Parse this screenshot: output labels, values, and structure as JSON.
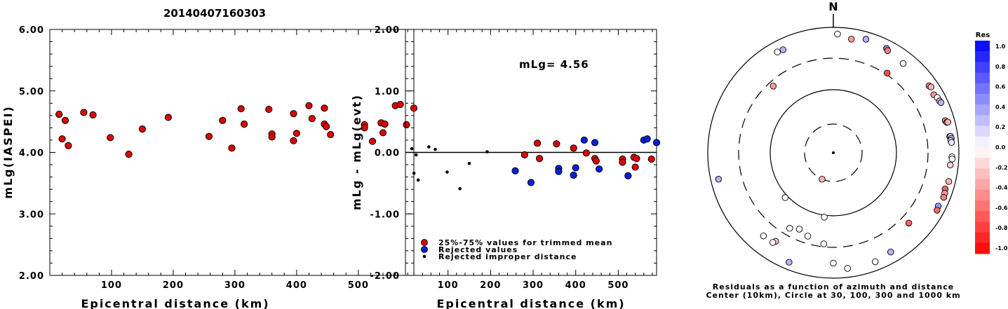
{
  "title": "20140407160303",
  "chart_data": [
    {
      "type": "scatter",
      "xlabel": "Epicentral distance (km)",
      "ylabel": "mLg(IASPEI)",
      "xlim": [
        0,
        590
      ],
      "ylim": [
        2.0,
        6.0
      ],
      "xticks": [
        "100",
        "200",
        "300",
        "400",
        "500"
      ],
      "yticks": [
        "2.00",
        "3.00",
        "4.00",
        "5.00",
        "6.00"
      ],
      "series": [
        {
          "color": "#e00000",
          "points": [
            [
              15,
              4.62
            ],
            [
              20,
              4.22
            ],
            [
              25,
              4.52
            ],
            [
              30,
              4.11
            ],
            [
              55,
              4.65
            ],
            [
              70,
              4.61
            ],
            [
              98,
              4.24
            ],
            [
              128,
              3.97
            ],
            [
              150,
              4.38
            ],
            [
              192,
              4.57
            ],
            [
              258,
              4.26
            ],
            [
              280,
              4.52
            ],
            [
              295,
              4.07
            ],
            [
              310,
              4.71
            ],
            [
              315,
              4.46
            ],
            [
              355,
              4.7
            ],
            [
              360,
              4.3
            ],
            [
              360,
              4.25
            ],
            [
              395,
              4.19
            ],
            [
              395,
              4.63
            ],
            [
              400,
              4.31
            ],
            [
              420,
              4.76
            ],
            [
              425,
              4.55
            ],
            [
              445,
              4.72
            ],
            [
              445,
              4.46
            ],
            [
              448,
              4.42
            ],
            [
              455,
              4.29
            ],
            [
              510,
              4.45
            ],
            [
              510,
              4.4
            ],
            [
              523,
              4.18
            ],
            [
              537,
              4.48
            ],
            [
              540,
              4.32
            ],
            [
              543,
              4.46
            ],
            [
              560,
              4.76
            ],
            [
              568,
              4.78
            ],
            [
              578,
              4.45
            ],
            [
              590,
              4.72
            ]
          ]
        }
      ]
    },
    {
      "type": "scatter",
      "xlabel": "Epicentral distance (km)",
      "ylabel": "mLg - mLg(evt)",
      "annotation": "mLg= 4.56",
      "xlim": [
        0,
        590
      ],
      "ylim": [
        -2.0,
        2.0
      ],
      "xticks": [
        "100",
        "200",
        "300",
        "400",
        "500"
      ],
      "yticks": [
        "-2.00",
        "-1.00",
        "0.00",
        "1.00",
        "2.00"
      ],
      "legend_position": "bottom-left",
      "series": [
        {
          "name": "25%-75% values for trimmed mean",
          "color": "#e00000",
          "points": [
            [
              280,
              -0.04
            ],
            [
              310,
              0.15
            ],
            [
              315,
              -0.1
            ],
            [
              355,
              0.14
            ],
            [
              395,
              0.07
            ],
            [
              425,
              -0.01
            ],
            [
              445,
              -0.1
            ],
            [
              448,
              -0.14
            ],
            [
              510,
              -0.11
            ],
            [
              510,
              -0.16
            ],
            [
              537,
              -0.08
            ],
            [
              540,
              -0.24
            ],
            [
              543,
              -0.1
            ],
            [
              578,
              -0.11
            ]
          ]
        },
        {
          "name": "Rejected values",
          "color": "#0022dd",
          "points": [
            [
              258,
              -0.3
            ],
            [
              295,
              -0.49
            ],
            [
              360,
              -0.26
            ],
            [
              360,
              -0.31
            ],
            [
              395,
              -0.37
            ],
            [
              400,
              -0.25
            ],
            [
              420,
              0.2
            ],
            [
              445,
              0.16
            ],
            [
              455,
              -0.27
            ],
            [
              523,
              -0.38
            ],
            [
              560,
              0.2
            ],
            [
              568,
              0.22
            ],
            [
              590,
              0.16
            ]
          ]
        },
        {
          "name": "Rejected improper distance",
          "color": "#000000",
          "points": [
            [
              15,
              0.06
            ],
            [
              20,
              -0.34
            ],
            [
              25,
              -0.04
            ],
            [
              30,
              -0.45
            ],
            [
              55,
              0.09
            ],
            [
              70,
              0.05
            ],
            [
              98,
              -0.32
            ],
            [
              128,
              -0.59
            ],
            [
              150,
              -0.18
            ],
            [
              192,
              0.01
            ]
          ]
        }
      ]
    },
    {
      "type": "scatter",
      "subtype": "polar",
      "north_label": "N",
      "caption_line1": "Residuals as a function of azimuth and distance",
      "caption_line2": "Center (10km), Circle at 30, 100, 300 and 1000 km",
      "colorbar_title": "Res",
      "colorbar_ticks": [
        "1.0",
        "0.8",
        "0.6",
        "0.4",
        "0.2",
        "0.0",
        "-0.2",
        "-0.4",
        "-0.6",
        "-0.8",
        "-1.0"
      ],
      "colorbar_range": [
        -1.0,
        1.0
      ],
      "distance_circles_km": [
        30,
        100,
        300,
        1000
      ],
      "points": [
        {
          "azimuth": 2,
          "distance_km": 770,
          "res": 0.0
        },
        {
          "azimuth": 9,
          "distance_km": 666,
          "res": -0.4
        },
        {
          "azimuth": -29,
          "distance_km": 672,
          "res": 0.0
        },
        {
          "azimuth": -26,
          "distance_km": 655,
          "res": 0.3
        },
        {
          "azimuth": 16,
          "distance_km": 750,
          "res": 0.3
        },
        {
          "azimuth": 27,
          "distance_km": 722,
          "res": 0.5
        },
        {
          "azimuth": 28,
          "distance_km": 681,
          "res": -0.5
        },
        {
          "azimuth": 38,
          "distance_km": 622,
          "res": 0.0
        },
        {
          "azimuth": 34,
          "distance_km": 318,
          "res": -0.7
        },
        {
          "azimuth": -42,
          "distance_km": 253,
          "res": -0.4
        },
        {
          "azimuth": 55,
          "distance_km": 710,
          "res": -0.5
        },
        {
          "azimuth": 60,
          "distance_km": 690,
          "res": -0.4
        },
        {
          "azimuth": 56,
          "distance_km": 738,
          "res": -0.3
        },
        {
          "azimuth": 62,
          "distance_km": 737,
          "res": 0.0
        },
        {
          "azimuth": 64,
          "distance_km": 749,
          "res": -0.3
        },
        {
          "azimuth": 65,
          "distance_km": 768,
          "res": 0.3
        },
        {
          "azimuth": 74,
          "distance_km": 700,
          "res": -0.5
        },
        {
          "azimuth": 75,
          "distance_km": 730,
          "res": -0.4
        },
        {
          "azimuth": 75,
          "distance_km": 761,
          "res": -0.3
        },
        {
          "azimuth": 82,
          "distance_km": 730,
          "res": -0.3
        },
        {
          "azimuth": 82,
          "distance_km": 752,
          "res": -0.2
        },
        {
          "azimuth": 83,
          "distance_km": 771,
          "res": 0.3
        },
        {
          "azimuth": 84,
          "distance_km": 745,
          "res": 0.2
        },
        {
          "azimuth": 85,
          "distance_km": 762,
          "res": 0.1
        },
        {
          "azimuth": 92,
          "distance_km": 762,
          "res": 0.0
        },
        {
          "azimuth": 93,
          "distance_km": 773,
          "res": 0.0
        },
        {
          "azimuth": 96,
          "distance_km": 732,
          "res": -0.2
        },
        {
          "azimuth": 104,
          "distance_km": 773,
          "res": -0.3
        },
        {
          "azimuth": 108,
          "distance_km": 730,
          "res": -0.6
        },
        {
          "azimuth": 110,
          "distance_km": 761,
          "res": -0.4
        },
        {
          "azimuth": 112,
          "distance_km": 775,
          "res": -0.5
        },
        {
          "azimuth": 117,
          "distance_km": 735,
          "res": 0.4
        },
        {
          "azimuth": 119,
          "distance_km": 763,
          "res": -0.6
        },
        {
          "azimuth": 150,
          "distance_km": 655,
          "res": 0.3
        },
        {
          "azimuth": 159,
          "distance_km": 713,
          "res": 0.0
        },
        {
          "azimuth": 173,
          "distance_km": 705,
          "res": 0.0
        },
        {
          "azimuth": 180,
          "distance_km": 555,
          "res": 0.0
        },
        {
          "azimuth": -158,
          "distance_km": 750,
          "res": 0.3
        },
        {
          "azimuth": -147,
          "distance_km": 461,
          "res": -0.3
        },
        {
          "azimuth": -146,
          "distance_km": 510,
          "res": 0.0
        },
        {
          "azimuth": -140,
          "distance_km": 518,
          "res": 0.0
        },
        {
          "azimuth": -103,
          "distance_km": 740,
          "res": 0.3
        },
        {
          "azimuth": 133,
          "distance_km": 418,
          "res": -0.6
        },
        {
          "azimuth": -133,
          "distance_km": 110,
          "res": 0.0
        },
        {
          "azimuth": -174,
          "distance_km": 270,
          "res": 0.0
        },
        {
          "azimuth": -163,
          "distance_km": 232,
          "res": 0.0
        },
        {
          "azimuth": -156,
          "distance_km": 205,
          "res": 0.0
        },
        {
          "azimuth": -150,
          "distance_km": 232,
          "res": 0.0
        },
        {
          "azimuth": -172,
          "distance_km": 107,
          "res": 0.0
        },
        {
          "azimuth": -157,
          "distance_km": 30,
          "res": -0.3
        }
      ]
    }
  ]
}
